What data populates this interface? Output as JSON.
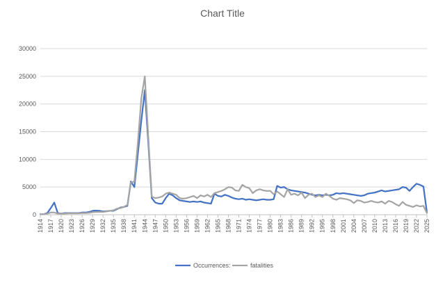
{
  "chart_data": {
    "type": "line",
    "title": "Chart Title",
    "xlabel": "",
    "ylabel": "",
    "ylim": [
      0,
      30000
    ],
    "y_ticks": [
      "0",
      "5000",
      "10000",
      "15000",
      "20000",
      "25000",
      "30000"
    ],
    "x_start": 1914,
    "x_end": 2025,
    "x_tick_step": 3,
    "grid": "horizontal",
    "legend_position": "bottom",
    "series": [
      {
        "name": "Occurrences:",
        "color": "#4472C4",
        "points": [
          [
            1914,
            100
          ],
          [
            1915,
            100
          ],
          [
            1916,
            300
          ],
          [
            1917,
            1200
          ],
          [
            1918,
            2200
          ],
          [
            1919,
            300
          ],
          [
            1920,
            200
          ],
          [
            1921,
            300
          ],
          [
            1922,
            300
          ],
          [
            1923,
            300
          ],
          [
            1924,
            300
          ],
          [
            1925,
            300
          ],
          [
            1926,
            400
          ],
          [
            1927,
            400
          ],
          [
            1928,
            500
          ],
          [
            1929,
            700
          ],
          [
            1930,
            750
          ],
          [
            1931,
            700
          ],
          [
            1932,
            600
          ],
          [
            1933,
            650
          ],
          [
            1934,
            700
          ],
          [
            1935,
            700
          ],
          [
            1936,
            1000
          ],
          [
            1937,
            1300
          ],
          [
            1938,
            1400
          ],
          [
            1939,
            1600
          ],
          [
            1940,
            6000
          ],
          [
            1941,
            5000
          ],
          [
            1942,
            11000
          ],
          [
            1943,
            17000
          ],
          [
            1944,
            22500
          ],
          [
            1945,
            13000
          ],
          [
            1946,
            3000
          ],
          [
            1947,
            2200
          ],
          [
            1948,
            2000
          ],
          [
            1949,
            2000
          ],
          [
            1950,
            3000
          ],
          [
            1951,
            3800
          ],
          [
            1952,
            3500
          ],
          [
            1953,
            3000
          ],
          [
            1954,
            2600
          ],
          [
            1955,
            2500
          ],
          [
            1956,
            2400
          ],
          [
            1957,
            2300
          ],
          [
            1958,
            2400
          ],
          [
            1959,
            2300
          ],
          [
            1960,
            2400
          ],
          [
            1961,
            2200
          ],
          [
            1962,
            2100
          ],
          [
            1963,
            2000
          ],
          [
            1964,
            3800
          ],
          [
            1965,
            3400
          ],
          [
            1966,
            3300
          ],
          [
            1967,
            3600
          ],
          [
            1968,
            3400
          ],
          [
            1969,
            3100
          ],
          [
            1970,
            2900
          ],
          [
            1971,
            2800
          ],
          [
            1972,
            2900
          ],
          [
            1973,
            2700
          ],
          [
            1974,
            2800
          ],
          [
            1975,
            2700
          ],
          [
            1976,
            2600
          ],
          [
            1977,
            2700
          ],
          [
            1978,
            2800
          ],
          [
            1979,
            2700
          ],
          [
            1980,
            2700
          ],
          [
            1981,
            2800
          ],
          [
            1982,
            5200
          ],
          [
            1983,
            4900
          ],
          [
            1984,
            5000
          ],
          [
            1985,
            4600
          ],
          [
            1986,
            4400
          ],
          [
            1987,
            4300
          ],
          [
            1988,
            4200
          ],
          [
            1989,
            4100
          ],
          [
            1990,
            4000
          ],
          [
            1991,
            3800
          ],
          [
            1992,
            3600
          ],
          [
            1993,
            3500
          ],
          [
            1994,
            3600
          ],
          [
            1995,
            3500
          ],
          [
            1996,
            3600
          ],
          [
            1997,
            3500
          ],
          [
            1998,
            3600
          ],
          [
            1999,
            3900
          ],
          [
            2000,
            3800
          ],
          [
            2001,
            3900
          ],
          [
            2002,
            3800
          ],
          [
            2003,
            3700
          ],
          [
            2004,
            3600
          ],
          [
            2005,
            3500
          ],
          [
            2006,
            3400
          ],
          [
            2007,
            3500
          ],
          [
            2008,
            3800
          ],
          [
            2009,
            3900
          ],
          [
            2010,
            4000
          ],
          [
            2011,
            4200
          ],
          [
            2012,
            4400
          ],
          [
            2013,
            4200
          ],
          [
            2014,
            4300
          ],
          [
            2015,
            4400
          ],
          [
            2016,
            4500
          ],
          [
            2017,
            4600
          ],
          [
            2018,
            5000
          ],
          [
            2019,
            4900
          ],
          [
            2020,
            4300
          ],
          [
            2021,
            5000
          ],
          [
            2022,
            5600
          ],
          [
            2023,
            5400
          ],
          [
            2024,
            5100
          ],
          [
            2025,
            400
          ]
        ]
      },
      {
        "name": "fatalities",
        "color": "#A5A5A5",
        "points": [
          [
            1914,
            100
          ],
          [
            1915,
            100
          ],
          [
            1916,
            200
          ],
          [
            1917,
            400
          ],
          [
            1918,
            400
          ],
          [
            1919,
            200
          ],
          [
            1920,
            200
          ],
          [
            1921,
            200
          ],
          [
            1922,
            250
          ],
          [
            1923,
            250
          ],
          [
            1924,
            250
          ],
          [
            1925,
            250
          ],
          [
            1926,
            300
          ],
          [
            1927,
            300
          ],
          [
            1928,
            350
          ],
          [
            1929,
            450
          ],
          [
            1930,
            500
          ],
          [
            1931,
            500
          ],
          [
            1932,
            500
          ],
          [
            1933,
            600
          ],
          [
            1934,
            700
          ],
          [
            1935,
            800
          ],
          [
            1936,
            1100
          ],
          [
            1937,
            1200
          ],
          [
            1938,
            1400
          ],
          [
            1939,
            1800
          ],
          [
            1940,
            5800
          ],
          [
            1941,
            6000
          ],
          [
            1942,
            13000
          ],
          [
            1943,
            21000
          ],
          [
            1944,
            25000
          ],
          [
            1945,
            14000
          ],
          [
            1946,
            3300
          ],
          [
            1947,
            3000
          ],
          [
            1948,
            3100
          ],
          [
            1949,
            3300
          ],
          [
            1950,
            3800
          ],
          [
            1951,
            4000
          ],
          [
            1952,
            3800
          ],
          [
            1953,
            3600
          ],
          [
            1954,
            3000
          ],
          [
            1955,
            2900
          ],
          [
            1956,
            3000
          ],
          [
            1957,
            3200
          ],
          [
            1958,
            3400
          ],
          [
            1959,
            3000
          ],
          [
            1960,
            3500
          ],
          [
            1961,
            3300
          ],
          [
            1962,
            3600
          ],
          [
            1963,
            3200
          ],
          [
            1964,
            3900
          ],
          [
            1965,
            4100
          ],
          [
            1966,
            4300
          ],
          [
            1967,
            4600
          ],
          [
            1968,
            5000
          ],
          [
            1969,
            4900
          ],
          [
            1970,
            4400
          ],
          [
            1971,
            4300
          ],
          [
            1972,
            5400
          ],
          [
            1973,
            5000
          ],
          [
            1974,
            4800
          ],
          [
            1975,
            3900
          ],
          [
            1976,
            4400
          ],
          [
            1977,
            4600
          ],
          [
            1978,
            4400
          ],
          [
            1979,
            4300
          ],
          [
            1980,
            4300
          ],
          [
            1981,
            3700
          ],
          [
            1982,
            4200
          ],
          [
            1983,
            3700
          ],
          [
            1984,
            3200
          ],
          [
            1985,
            4600
          ],
          [
            1986,
            3600
          ],
          [
            1987,
            3800
          ],
          [
            1988,
            3500
          ],
          [
            1989,
            4000
          ],
          [
            1990,
            3000
          ],
          [
            1991,
            3600
          ],
          [
            1992,
            3800
          ],
          [
            1993,
            3200
          ],
          [
            1994,
            3500
          ],
          [
            1995,
            3200
          ],
          [
            1996,
            3800
          ],
          [
            1997,
            3400
          ],
          [
            1998,
            2900
          ],
          [
            1999,
            2700
          ],
          [
            2000,
            3000
          ],
          [
            2001,
            2900
          ],
          [
            2002,
            2800
          ],
          [
            2003,
            2600
          ],
          [
            2004,
            2100
          ],
          [
            2005,
            2600
          ],
          [
            2006,
            2500
          ],
          [
            2007,
            2200
          ],
          [
            2008,
            2300
          ],
          [
            2009,
            2500
          ],
          [
            2010,
            2300
          ],
          [
            2011,
            2200
          ],
          [
            2012,
            2400
          ],
          [
            2013,
            2000
          ],
          [
            2014,
            2500
          ],
          [
            2015,
            2300
          ],
          [
            2016,
            1900
          ],
          [
            2017,
            1600
          ],
          [
            2018,
            2300
          ],
          [
            2019,
            1800
          ],
          [
            2020,
            1600
          ],
          [
            2021,
            1400
          ],
          [
            2022,
            1700
          ],
          [
            2023,
            1500
          ],
          [
            2024,
            1600
          ],
          [
            2025,
            300
          ]
        ]
      }
    ]
  }
}
